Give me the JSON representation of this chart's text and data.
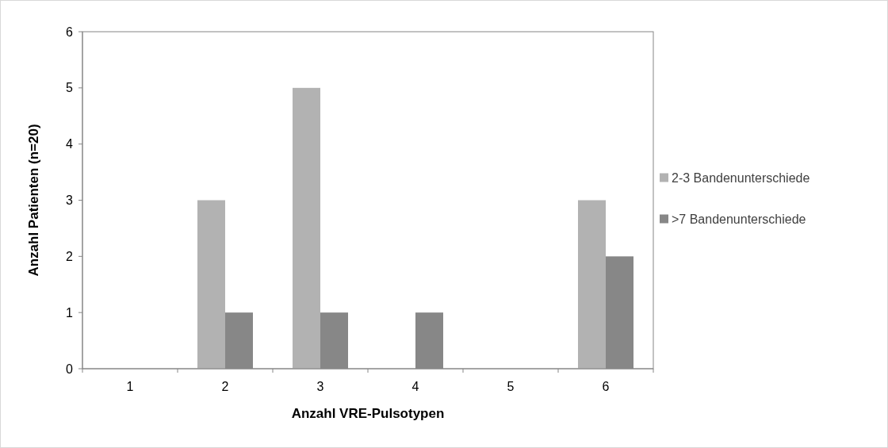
{
  "chart_data": {
    "type": "bar",
    "xlabel": "Anzahl VRE-Pulsotypen",
    "ylabel": "Anzahl Patienten (n=20)",
    "categories": [
      "1",
      "2",
      "3",
      "4",
      "5",
      "6"
    ],
    "series": [
      {
        "name": "2-3 Bandenunterschiede",
        "color": "#b2b2b2",
        "values": [
          0,
          3,
          5,
          0,
          0,
          3
        ]
      },
      {
        "name": ">7 Bandenunterschiede",
        "color": "#878787",
        "values": [
          0,
          1,
          1,
          1,
          0,
          2
        ]
      }
    ],
    "ylim": [
      0,
      6
    ],
    "yticks": [
      0,
      1,
      2,
      3,
      4,
      5,
      6
    ],
    "grid": false,
    "legend": "right"
  }
}
